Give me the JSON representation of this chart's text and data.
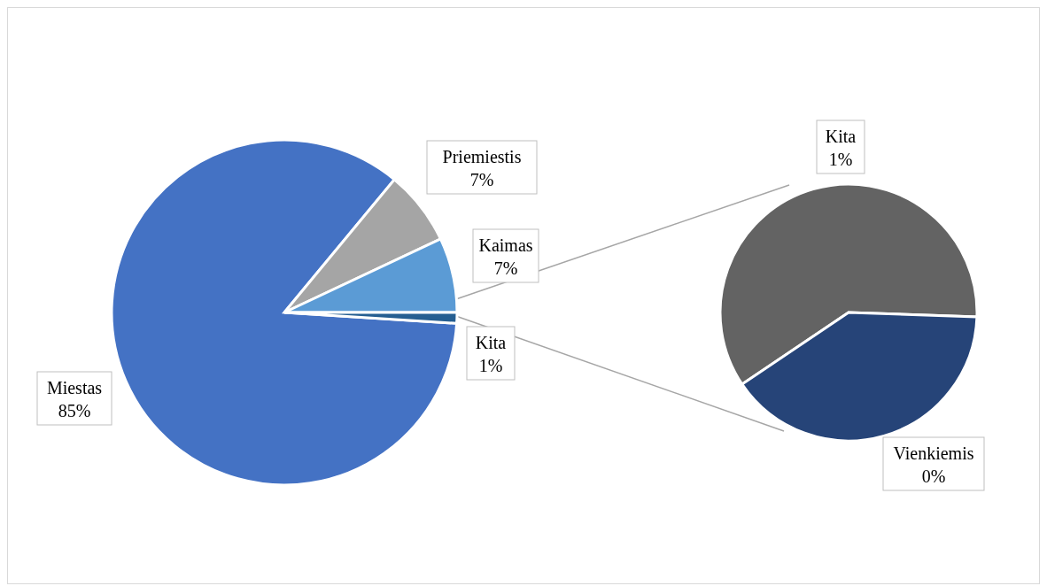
{
  "chart_data": [
    {
      "type": "pie",
      "categories": [
        "Miestas",
        "Priemiestis",
        "Kaimas",
        "Kita"
      ],
      "values": [
        85,
        7,
        7,
        1
      ],
      "value_labels": [
        "85%",
        "7%",
        "7%",
        "1%"
      ],
      "colors": [
        "#4472c4",
        "#a5a5a5",
        "#5b9bd5",
        "#255e91"
      ],
      "legend": false
    },
    {
      "type": "pie",
      "categories": [
        "Kita",
        "Vienkiemis"
      ],
      "values": [
        0.6,
        0.4
      ],
      "value_labels": [
        "1%",
        "0%"
      ],
      "colors": [
        "#636363",
        "#264478"
      ],
      "legend": false
    }
  ]
}
